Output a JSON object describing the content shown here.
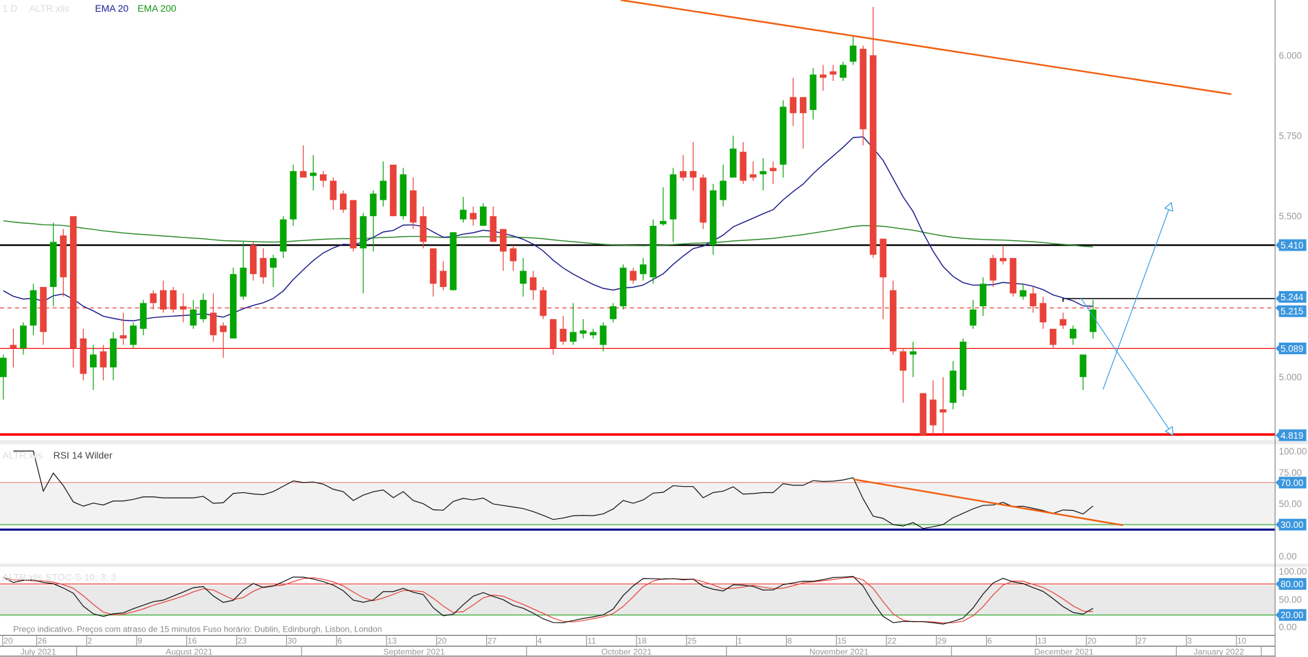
{
  "header": {
    "interval": "1 D",
    "symbol": "ALTR:xlis",
    "ema20_label": "EMA 20",
    "ema200_label": "EMA 200"
  },
  "rsi_panel": {
    "symbol": "ALTR:xlis",
    "label": "RSI 14 Wilder"
  },
  "stoch_panel": {
    "label": "ALTR:xlis  STOC-S 10; 3; 3"
  },
  "footer_note": "Preço indicativo. Preços com atraso de 15 minutos    Fuso horário: Dublin, Edinburgh, Lisbon, London",
  "colors": {
    "up": "#06a506",
    "down": "#e8433a",
    "ema20": "#1a1a8c",
    "ema200": "#2a8a2a",
    "badge": "#3a96dd",
    "trendline": "#f06010",
    "arrows": "#3a9ee0"
  },
  "chart_data": {
    "type": "candlestick",
    "x_start": "2021-07-20",
    "price_axis": {
      "ticks": [
        "6.000",
        "5.750",
        "5.500",
        "5.000"
      ],
      "tick_values": [
        6.0,
        5.75,
        5.5,
        5.0
      ]
    },
    "levels": {
      "resistance": {
        "value": 5.41,
        "label": "5.410"
      },
      "recent_high": {
        "value": 5.244,
        "label": "5.244"
      },
      "last_price": {
        "value": 5.215,
        "label": "5.215"
      },
      "support": {
        "value": 5.089,
        "label": "5.089"
      },
      "low": {
        "value": 4.819,
        "label": "4.819"
      }
    },
    "ema20_start": 5.29,
    "ema200_start": 5.49,
    "ohlc": [
      [
        5.0,
        5.07,
        4.93,
        5.06
      ],
      [
        5.1,
        5.15,
        5.03,
        5.09
      ],
      [
        5.09,
        5.17,
        5.07,
        5.16
      ],
      [
        5.16,
        5.29,
        5.13,
        5.27
      ],
      [
        5.28,
        5.28,
        5.1,
        5.14
      ],
      [
        5.28,
        5.48,
        5.22,
        5.42
      ],
      [
        5.44,
        5.46,
        5.25,
        5.31
      ],
      [
        5.5,
        5.5,
        5.03,
        5.09
      ],
      [
        5.12,
        5.15,
        4.99,
        5.01
      ],
      [
        5.03,
        5.1,
        4.96,
        5.07
      ],
      [
        5.08,
        5.1,
        4.99,
        5.03
      ],
      [
        5.03,
        5.14,
        4.99,
        5.12
      ],
      [
        5.13,
        5.2,
        5.1,
        5.12
      ],
      [
        5.1,
        5.17,
        5.09,
        5.16
      ],
      [
        5.15,
        5.24,
        5.13,
        5.23
      ],
      [
        5.26,
        5.27,
        5.21,
        5.23
      ],
      [
        5.27,
        5.3,
        5.2,
        5.21
      ],
      [
        5.27,
        5.28,
        5.2,
        5.21
      ],
      [
        5.22,
        5.26,
        5.17,
        5.21
      ],
      [
        5.16,
        5.24,
        5.15,
        5.21
      ],
      [
        5.18,
        5.26,
        5.17,
        5.24
      ],
      [
        5.2,
        5.26,
        5.11,
        5.13
      ],
      [
        5.16,
        5.17,
        5.06,
        5.14
      ],
      [
        5.12,
        5.34,
        5.12,
        5.32
      ],
      [
        5.25,
        5.42,
        5.24,
        5.34
      ],
      [
        5.41,
        5.42,
        5.3,
        5.32
      ],
      [
        5.37,
        5.4,
        5.29,
        5.31
      ],
      [
        5.34,
        5.38,
        5.28,
        5.37
      ],
      [
        5.39,
        5.5,
        5.37,
        5.49
      ],
      [
        5.49,
        5.66,
        5.47,
        5.64
      ],
      [
        5.64,
        5.72,
        5.62,
        5.62
      ],
      [
        5.625,
        5.69,
        5.58,
        5.635
      ],
      [
        5.63,
        5.64,
        5.59,
        5.61
      ],
      [
        5.61,
        5.62,
        5.52,
        5.55
      ],
      [
        5.57,
        5.58,
        5.51,
        5.52
      ],
      [
        5.55,
        5.55,
        5.39,
        5.4
      ],
      [
        5.4,
        5.51,
        5.26,
        5.5
      ],
      [
        5.5,
        5.58,
        5.39,
        5.57
      ],
      [
        5.55,
        5.67,
        5.53,
        5.61
      ],
      [
        5.66,
        5.66,
        5.5,
        5.5
      ],
      [
        5.5,
        5.65,
        5.49,
        5.63
      ],
      [
        5.58,
        5.62,
        5.46,
        5.48
      ],
      [
        5.5,
        5.53,
        5.4,
        5.42
      ],
      [
        5.4,
        5.4,
        5.25,
        5.29
      ],
      [
        5.33,
        5.36,
        5.27,
        5.28
      ],
      [
        5.27,
        5.45,
        5.27,
        5.45
      ],
      [
        5.49,
        5.56,
        5.48,
        5.52
      ],
      [
        5.51,
        5.53,
        5.47,
        5.49
      ],
      [
        5.47,
        5.54,
        5.47,
        5.53
      ],
      [
        5.5,
        5.53,
        5.42,
        5.42
      ],
      [
        5.46,
        5.46,
        5.33,
        5.39
      ],
      [
        5.4,
        5.41,
        5.33,
        5.36
      ],
      [
        5.29,
        5.37,
        5.25,
        5.33
      ],
      [
        5.31,
        5.33,
        5.24,
        5.27
      ],
      [
        5.27,
        5.28,
        5.18,
        5.19
      ],
      [
        5.18,
        5.18,
        5.07,
        5.09
      ],
      [
        5.15,
        5.19,
        5.1,
        5.11
      ],
      [
        5.11,
        5.23,
        5.1,
        5.14
      ],
      [
        5.135,
        5.18,
        5.12,
        5.145
      ],
      [
        5.13,
        5.15,
        5.12,
        5.14
      ],
      [
        5.1,
        5.17,
        5.08,
        5.16
      ],
      [
        5.18,
        5.23,
        5.17,
        5.22
      ],
      [
        5.22,
        5.35,
        5.21,
        5.34
      ],
      [
        5.33,
        5.34,
        5.29,
        5.3
      ],
      [
        5.32,
        5.37,
        5.3,
        5.35
      ],
      [
        5.31,
        5.49,
        5.29,
        5.47
      ],
      [
        5.475,
        5.59,
        5.47,
        5.485
      ],
      [
        5.49,
        5.65,
        5.42,
        5.63
      ],
      [
        5.64,
        5.69,
        5.61,
        5.62
      ],
      [
        5.64,
        5.73,
        5.58,
        5.62
      ],
      [
        5.62,
        5.63,
        5.46,
        5.48
      ],
      [
        5.41,
        5.6,
        5.38,
        5.58
      ],
      [
        5.55,
        5.66,
        5.53,
        5.61
      ],
      [
        5.62,
        5.75,
        5.62,
        5.71
      ],
      [
        5.7,
        5.73,
        5.6,
        5.61
      ],
      [
        5.63,
        5.67,
        5.61,
        5.62
      ],
      [
        5.63,
        5.68,
        5.58,
        5.64
      ],
      [
        5.65,
        5.67,
        5.6,
        5.64
      ],
      [
        5.66,
        5.86,
        5.62,
        5.84
      ],
      [
        5.87,
        5.93,
        5.78,
        5.82
      ],
      [
        5.87,
        5.87,
        5.71,
        5.82
      ],
      [
        5.83,
        5.96,
        5.8,
        5.94
      ],
      [
        5.94,
        5.97,
        5.89,
        5.93
      ],
      [
        5.95,
        5.97,
        5.92,
        5.94
      ],
      [
        5.93,
        5.98,
        5.92,
        5.97
      ],
      [
        5.98,
        6.06,
        5.97,
        6.03
      ],
      [
        6.02,
        6.03,
        5.72,
        5.77
      ],
      [
        6.0,
        6.15,
        5.37,
        5.38
      ],
      [
        5.43,
        5.43,
        5.18,
        5.31
      ],
      [
        5.27,
        5.3,
        5.07,
        5.08
      ],
      [
        5.08,
        5.09,
        4.92,
        5.02
      ],
      [
        5.07,
        5.11,
        5.0,
        5.08
      ],
      [
        4.95,
        4.95,
        4.82,
        4.82
      ],
      [
        4.93,
        4.99,
        4.82,
        4.85
      ],
      [
        4.9,
        5.0,
        4.82,
        4.89
      ],
      [
        4.92,
        5.05,
        4.9,
        5.02
      ],
      [
        4.96,
        5.12,
        4.94,
        5.11
      ],
      [
        5.16,
        5.24,
        5.15,
        5.21
      ],
      [
        5.22,
        5.31,
        5.19,
        5.29
      ],
      [
        5.37,
        5.38,
        5.28,
        5.3
      ],
      [
        5.37,
        5.41,
        5.35,
        5.36
      ],
      [
        5.37,
        5.37,
        5.25,
        5.26
      ],
      [
        5.25,
        5.29,
        5.24,
        5.27
      ],
      [
        5.26,
        5.28,
        5.2,
        5.22
      ],
      [
        5.23,
        5.25,
        5.15,
        5.17
      ],
      [
        5.15,
        5.15,
        5.09,
        5.1
      ],
      [
        5.18,
        5.2,
        5.15,
        5.16
      ],
      [
        5.12,
        5.16,
        5.1,
        5.15
      ],
      [
        5.0,
        5.07,
        4.96,
        5.07
      ],
      [
        5.14,
        5.24,
        5.12,
        5.21
      ]
    ],
    "rsi": {
      "period": 14,
      "ticks": [
        "100.00",
        "75.00",
        "50.00",
        "0.00"
      ],
      "tick_values": [
        100,
        75,
        50,
        0
      ],
      "overbought": {
        "value": 70,
        "label": "70.00"
      },
      "oversold": {
        "value": 30,
        "label": "30.00"
      }
    },
    "stochastic": {
      "k": 10,
      "smooth": 3,
      "d": 3,
      "ticks": [
        "100.00",
        "50.00",
        "0.00"
      ],
      "tick_values": [
        100,
        50,
        0
      ],
      "upper": {
        "value": 80,
        "label": "80.00"
      },
      "lower": {
        "value": 20,
        "label": "20.00"
      }
    },
    "week_ticks": [
      {
        "label": "20",
        "idx": 0.6
      },
      {
        "label": "26",
        "idx": 4
      },
      {
        "label": "2",
        "idx": 9
      },
      {
        "label": "9",
        "idx": 14
      },
      {
        "label": "16",
        "idx": 19
      },
      {
        "label": "23",
        "idx": 24
      },
      {
        "label": "30",
        "idx": 29
      },
      {
        "label": "6",
        "idx": 34
      },
      {
        "label": "13",
        "idx": 39
      },
      {
        "label": "20",
        "idx": 44
      },
      {
        "label": "27",
        "idx": 49
      },
      {
        "label": "4",
        "idx": 54
      },
      {
        "label": "11",
        "idx": 59
      },
      {
        "label": "18",
        "idx": 64
      },
      {
        "label": "25",
        "idx": 69
      },
      {
        "label": "1",
        "idx": 74
      },
      {
        "label": "8",
        "idx": 79
      },
      {
        "label": "15",
        "idx": 84
      },
      {
        "label": "22",
        "idx": 89
      },
      {
        "label": "29",
        "idx": 94
      },
      {
        "label": "6",
        "idx": 99
      },
      {
        "label": "13",
        "idx": 104
      },
      {
        "label": "20",
        "idx": 109
      },
      {
        "label": "27",
        "idx": 114
      },
      {
        "label": "3",
        "idx": 119
      },
      {
        "label": "10",
        "idx": 124
      }
    ],
    "months": [
      {
        "label": "July 2021",
        "start": -1,
        "end": 8
      },
      {
        "label": "August 2021",
        "start": 8,
        "end": 30.5
      },
      {
        "label": "September 2021",
        "start": 30.5,
        "end": 53
      },
      {
        "label": "October 2021",
        "start": 53,
        "end": 73
      },
      {
        "label": "November 2021",
        "start": 73,
        "end": 95.5
      },
      {
        "label": "December 2021",
        "start": 95.5,
        "end": 118
      },
      {
        "label": "January 2022",
        "start": 118,
        "end": 126.5
      }
    ]
  }
}
